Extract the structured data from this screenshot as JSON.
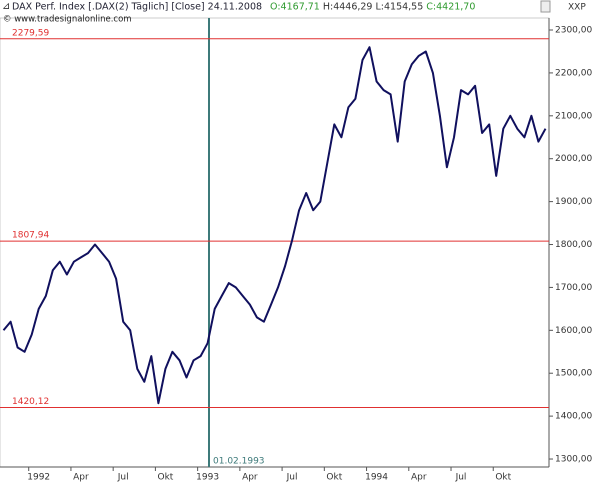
{
  "chart_data": {
    "type": "line",
    "title": "DAX Perf. Index [.DAX(2) Täglich] [Close] 24.11.2008",
    "quotes": [
      {
        "text": "O:4167,71",
        "color": "#2e9a2e"
      },
      {
        "text": "H:4446,29",
        "color": "#333333"
      },
      {
        "text": "L:4154,55",
        "color": "#333333"
      },
      {
        "text": "C:4421,70",
        "color": "#2e9a2e"
      }
    ],
    "source": "© www.tradesignalonline.com",
    "corner_label": "XXP",
    "categories": [
      null,
      null,
      null,
      null,
      null,
      "1992",
      null,
      null,
      null,
      null,
      null,
      "Apr",
      null,
      null,
      null,
      null,
      null,
      "Jul",
      null,
      null,
      null,
      null,
      null,
      "Okt",
      null,
      null,
      null,
      null,
      null,
      "1993",
      null,
      null,
      null,
      null,
      null,
      "Apr",
      null,
      null,
      null,
      null,
      null,
      "Jul",
      null,
      null,
      null,
      null,
      null,
      "Okt",
      null,
      null,
      null,
      null,
      null,
      "1994",
      null,
      null,
      null,
      null,
      null,
      "Apr",
      null,
      null,
      null,
      null,
      null,
      "Jul",
      null,
      null,
      null,
      null,
      null,
      "Okt",
      null,
      null,
      null,
      null,
      null,
      null
    ],
    "values": [
      1600,
      1620,
      1560,
      1550,
      1590,
      1650,
      1680,
      1740,
      1760,
      1730,
      1760,
      1770,
      1780,
      1800,
      1780,
      1760,
      1720,
      1620,
      1600,
      1510,
      1480,
      1540,
      1430,
      1510,
      1550,
      1530,
      1490,
      1530,
      1540,
      1570,
      1650,
      1680,
      1710,
      1700,
      1680,
      1660,
      1630,
      1620,
      1660,
      1700,
      1750,
      1810,
      1880,
      1920,
      1880,
      1900,
      1990,
      2080,
      2050,
      2120,
      2140,
      2230,
      2260,
      2180,
      2160,
      2150,
      2040,
      2180,
      2220,
      2240,
      2250,
      2200,
      2100,
      1980,
      2050,
      2160,
      2150,
      2170,
      2060,
      2080,
      1960,
      2070,
      2100,
      2070,
      2050,
      2100,
      2040,
      2070
    ],
    "color": "#10105e",
    "ylim": [
      1281.4,
      2328
    ],
    "yticks": [
      {
        "value": 1300,
        "label": "1300,00"
      },
      {
        "value": 1400,
        "label": "1400,00"
      },
      {
        "value": 1500,
        "label": "1500,00"
      },
      {
        "value": 1600,
        "label": "1600,00"
      },
      {
        "value": 1700,
        "label": "1700,00"
      },
      {
        "value": 1800,
        "label": "1800,00"
      },
      {
        "value": 1900,
        "label": "1900,00"
      },
      {
        "value": 2000,
        "label": "2000,00"
      },
      {
        "value": 2100,
        "label": "2100,00"
      },
      {
        "value": 2200,
        "label": "2200,00"
      },
      {
        "value": 2300,
        "label": "2300,00"
      }
    ],
    "hlines": [
      {
        "value": 2279.59,
        "label": "2279,59"
      },
      {
        "value": 1807.94,
        "label": "1807,94"
      },
      {
        "value": 1420.12,
        "label": "1420,12"
      }
    ],
    "hline_color": "#e03030",
    "vline_label": "01.02.1993"
  }
}
